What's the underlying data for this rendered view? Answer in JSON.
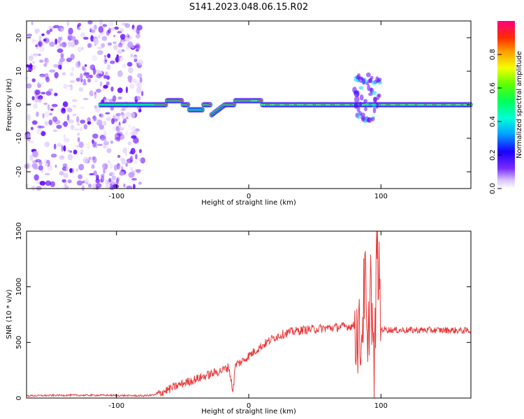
{
  "title": "S141.2023.048.06.15.R02",
  "spectrogram": {
    "type": "heatmap",
    "xlabel": "Height of straight line (km)",
    "ylabel": "Frequency (Hz)",
    "xlim": [
      -168,
      168
    ],
    "ylim": [
      -25,
      25
    ],
    "xticks": [
      "-100",
      "0",
      "100"
    ],
    "yticks": [
      "20",
      "10",
      "0",
      "-10",
      "-20"
    ],
    "colorbar_label": "Normalized spectral amplitude",
    "colorbar_ticks": [
      "0.0",
      "0.2",
      "0.4",
      "0.6",
      "0.8"
    ],
    "colorbar_range": [
      0,
      1
    ],
    "colors": [
      "#ffffff",
      "#e3d3ff",
      "#c29cff",
      "#8a3dff",
      "#5f00ff",
      "#1a00ff",
      "#0050ff",
      "#00d8ff",
      "#00ff78",
      "#3cff00",
      "#ffe600",
      "#ff8000",
      "#ff0040",
      "#ff0080"
    ]
  },
  "chart_data": {
    "type": "line",
    "xlabel": "Height of straight line (km)",
    "ylabel": "SNR (10 * v/v)",
    "xlim": [
      -168,
      168
    ],
    "ylim": [
      0,
      1500
    ],
    "xticks": [
      "-100",
      "0",
      "100"
    ],
    "yticks": [
      "0",
      "500",
      "1000",
      "1500"
    ],
    "line_color": "#e8393a",
    "x": [
      -168,
      -140,
      -110,
      -80,
      -70,
      -60,
      -50,
      -40,
      -30,
      -20,
      -15,
      -12,
      -10,
      -5,
      0,
      10,
      20,
      30,
      40,
      50,
      60,
      70,
      80,
      85,
      88,
      90,
      92,
      95,
      97,
      100,
      110,
      130,
      150,
      168
    ],
    "y": [
      20,
      25,
      25,
      20,
      30,
      80,
      130,
      170,
      210,
      250,
      280,
      60,
      300,
      330,
      380,
      470,
      550,
      590,
      610,
      620,
      630,
      640,
      650,
      500,
      1100,
      200,
      1200,
      100,
      1480,
      620,
      610,
      610,
      610,
      605
    ]
  }
}
